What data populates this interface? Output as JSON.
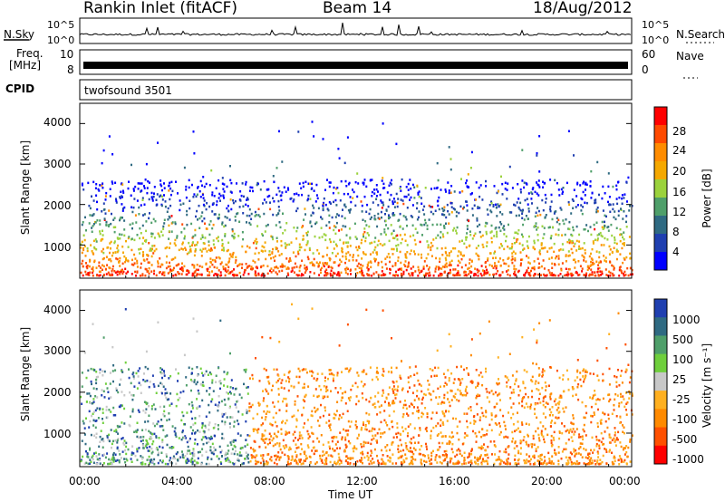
{
  "header": {
    "station": "Rankin Inlet (fitACF)",
    "beam": "Beam 14",
    "date": "18/Aug/2012"
  },
  "status_panels": {
    "nsky_label": "N.Sky",
    "nsky_ticks": [
      "10^5",
      "10^0"
    ],
    "nsearch_label": "N.Search",
    "nsearch_ticks": [
      "10^5",
      "10^0"
    ],
    "freq_label_1": "Freq.",
    "freq_label_2": "[MHz]",
    "freq_ticks": [
      "10",
      "8"
    ],
    "nave_label": "Nave",
    "nave_ticks": [
      "60",
      "0"
    ],
    "cpid_label": "CPID",
    "cpid_value": "twofsound 3501"
  },
  "chart_data": [
    {
      "type": "heatmap",
      "name": "power",
      "ylabel": "Slant Range [km]",
      "yticks": [
        "4000",
        "3000",
        "2000",
        "1000"
      ],
      "ylim": [
        180,
        4500
      ],
      "colorbar_label": "Power [dB]",
      "colorbar_ticks": [
        "28",
        "24",
        "20",
        "16",
        "12",
        "8",
        "4"
      ],
      "colorbar_colors": [
        "#ff0000",
        "#ff4a00",
        "#ff8c00",
        "#f5a800",
        "#9bd23c",
        "#4f9f6a",
        "#2f6a82",
        "#1f3fb0",
        "#0000ff"
      ]
    },
    {
      "type": "heatmap",
      "name": "velocity",
      "ylabel": "Slant Range [km]",
      "yticks": [
        "4000",
        "3000",
        "2000",
        "1000"
      ],
      "ylim": [
        180,
        4500
      ],
      "colorbar_label": "Velocity [m s⁻¹]",
      "colorbar_ticks": [
        "1000",
        "500",
        "100",
        "25",
        "-25",
        "-100",
        "-500",
        "-1000"
      ],
      "colorbar_colors": [
        "#1f3fb0",
        "#2f6a82",
        "#4f9f6a",
        "#6fcf3c",
        "#c8c8c8",
        "#ffb020",
        "#ff8a00",
        "#ff5000",
        "#ff0000"
      ]
    }
  ],
  "time_axis": {
    "ticks": [
      "00:00",
      "04:00",
      "08:00",
      "12:00",
      "16:00",
      "20:00",
      "00:00"
    ],
    "label": "Time UT"
  }
}
